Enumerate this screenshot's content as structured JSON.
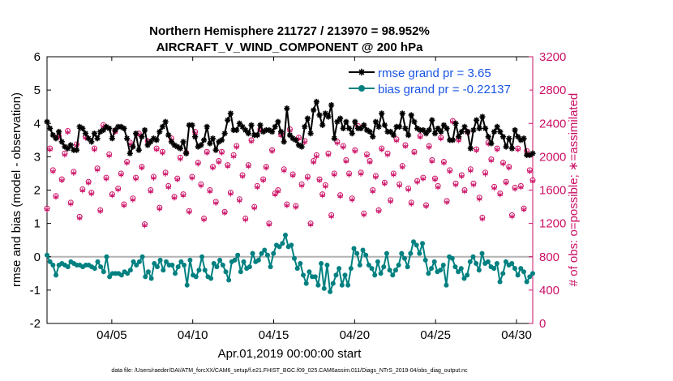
{
  "chart_data": {
    "type": "line",
    "title": "Northern Hemisphere 211727 / 213970 = 98.952%",
    "subtitle": "AIRCRAFT_V_WIND_COMPONENT @ 200 hPa",
    "xlabel": "Apr.01,2019 00:00:00 start",
    "ylabel": "rmse and bias (model - observation)",
    "y2label": "# of obs: o=possible; ∗=assimilated",
    "footnote": "data file: /Users/raeder/DAI/ATM_forcXX/CAM6_setup/f.e21.FHIST_BGC.f09_025.CAM6assim.011/Diags_NTrS_2019-04/obs_diag_output.nc",
    "xlim": [
      1,
      31
    ],
    "ylim": [
      -2,
      6
    ],
    "y2lim": [
      0,
      3200
    ],
    "x_ticks": [
      5,
      10,
      15,
      20,
      25,
      30
    ],
    "x_tick_labels": [
      "04/05",
      "04/10",
      "04/15",
      "04/20",
      "04/25",
      "04/30"
    ],
    "y_ticks": [
      -2,
      -1,
      0,
      1,
      2,
      3,
      4,
      5,
      6
    ],
    "y_tick_labels": [
      "-2",
      "-1",
      "0",
      "1",
      "2",
      "3",
      "4",
      "5",
      "6"
    ],
    "y2_ticks": [
      0,
      400,
      800,
      1200,
      1600,
      2000,
      2400,
      2800,
      3200
    ],
    "y2_tick_labels": [
      "0",
      "400",
      "800",
      "1200",
      "1600",
      "2000",
      "2400",
      "2800",
      "3200"
    ],
    "legend_position": "top-right",
    "grid": false,
    "series": [
      {
        "name": "rmse grand pr = 3.65",
        "color": "#000000",
        "marker": "asterisk",
        "values": [
          4.05,
          3.85,
          3.65,
          3.55,
          3.75,
          3.45,
          3.3,
          3.25,
          3.35,
          3.2,
          3.2,
          3.9,
          3.85,
          3.7,
          3.55,
          3.45,
          3.7,
          3.55,
          3.75,
          3.8,
          3.9,
          3.85,
          3.55,
          3.8,
          3.9,
          3.9,
          3.85,
          3.55,
          3.1,
          3.3,
          3.7,
          3.2,
          3.6,
          3.8,
          3.35,
          3.45,
          3.55,
          3.5,
          3.75,
          3.9,
          4.05,
          3.65,
          3.45,
          3.35,
          3.3,
          3.25,
          3.45,
          3.1,
          3.95,
          3.95,
          3.6,
          3.3,
          3.35,
          3.5,
          3.9,
          3.4,
          3.55,
          3.2,
          3.45,
          3.5,
          3.7,
          4.1,
          4.3,
          3.8,
          3.8,
          4.0,
          3.9,
          3.8,
          3.7,
          3.95,
          3.65,
          3.65,
          3.95,
          3.75,
          3.8,
          3.8,
          3.75,
          3.9,
          4.05,
          3.75,
          3.45,
          4.45,
          3.65,
          3.55,
          3.5,
          3.35,
          3.3,
          3.9,
          4.15,
          3.7,
          4.4,
          4.65,
          4.25,
          3.95,
          4.3,
          4.2,
          4.55,
          3.55,
          4.05,
          4.15,
          3.85,
          4.05,
          3.85,
          3.7,
          4.05,
          3.85,
          3.85,
          3.95,
          3.8,
          3.75,
          3.6,
          4.05,
          3.9,
          4.3,
          3.95,
          3.75,
          3.75,
          3.65,
          3.9,
          3.9,
          4.3,
          3.85,
          3.65,
          4.25,
          4.05,
          3.85,
          3.8,
          3.8,
          3.7,
          3.8,
          4.1,
          3.7,
          3.85,
          3.75,
          3.95,
          3.85,
          3.5,
          3.5,
          4.0,
          3.6,
          3.75,
          3.9,
          3.75,
          3.25,
          3.8,
          4.1,
          3.85,
          4.2,
          3.85,
          3.6,
          3.4,
          3.75,
          3.9,
          3.75,
          3.6,
          3.3,
          3.55,
          3.25,
          3.8,
          3.6,
          3.5,
          3.55,
          3.05,
          3.05,
          3.1
        ]
      },
      {
        "name": "bias grand pr = -0.22137",
        "color": "#008080",
        "marker": "circle",
        "values": [
          0.05,
          -0.15,
          -0.25,
          -0.55,
          -0.25,
          -0.2,
          -0.25,
          -0.3,
          -0.15,
          -0.2,
          -0.25,
          -0.25,
          -0.3,
          -0.25,
          -0.25,
          -0.3,
          -0.35,
          -0.15,
          -0.3,
          -0.45,
          0.0,
          -0.6,
          -0.5,
          -0.5,
          -0.5,
          -0.55,
          -0.45,
          -0.5,
          -0.4,
          -0.15,
          -0.25,
          -0.15,
          0.0,
          -0.6,
          -0.45,
          -0.65,
          -0.2,
          -0.3,
          -0.1,
          -0.4,
          -0.15,
          -0.25,
          -0.25,
          -0.5,
          -0.3,
          -0.15,
          -0.25,
          -0.85,
          -0.1,
          -0.55,
          -0.6,
          -0.4,
          0.0,
          -0.4,
          -0.6,
          -0.65,
          -0.2,
          -0.3,
          -0.1,
          -0.25,
          -0.45,
          -0.7,
          -0.15,
          -0.1,
          0.05,
          -0.45,
          -0.15,
          -0.35,
          -0.3,
          0.1,
          -0.15,
          -0.1,
          0.1,
          0.2,
          0.05,
          -0.3,
          0.1,
          0.35,
          0.3,
          0.4,
          0.65,
          0.3,
          0.35,
          -0.05,
          -0.35,
          -0.2,
          -0.55,
          -0.8,
          -0.45,
          -0.6,
          -0.6,
          -0.85,
          -0.2,
          -0.95,
          -0.25,
          -1.05,
          -0.8,
          -0.55,
          -0.35,
          -0.85,
          -0.55,
          -0.85,
          -0.35,
          0.25,
          0.1,
          -0.25,
          0.2,
          0.05,
          -0.25,
          -0.35,
          -0.55,
          -0.15,
          -0.5,
          -0.3,
          0.1,
          -0.4,
          -0.55,
          -0.4,
          -0.25,
          0.1,
          -0.05,
          -0.3,
          0.1,
          0.45,
          0.35,
          0.1,
          0.4,
          -0.1,
          -0.5,
          -0.35,
          -0.15,
          -0.45,
          -0.4,
          -0.25,
          -0.85,
          0.0,
          -0.05,
          -0.3,
          -0.45,
          -0.35,
          -0.65,
          -0.55,
          -0.15,
          0.0,
          -0.2,
          -0.4,
          0.1,
          -0.2,
          -0.15,
          -0.3,
          -0.35,
          -0.2,
          -0.75,
          -0.5,
          -0.15,
          -0.25,
          -0.2,
          -0.35,
          -0.55,
          -0.35,
          -0.45,
          -0.75,
          -0.6,
          -0.5
        ]
      },
      {
        "name": "obs possible",
        "axis": "right",
        "color": "#cc1166",
        "marker": "open-circle",
        "values": [
          1380,
          2100,
          1840,
          1530,
          2250,
          1730,
          2040,
          2310,
          1450,
          1820,
          2150,
          1280,
          1610,
          2240,
          1700,
          1570,
          2100,
          1860,
          1360,
          2380,
          1750,
          2030,
          1550,
          2310,
          1620,
          1800,
          1430,
          1940,
          2170,
          1500,
          1750,
          2280,
          1880,
          1190,
          2190,
          1600,
          1760,
          2100,
          1390,
          2060,
          1810,
          1650,
          2220,
          1520,
          1740,
          1990,
          1550,
          2050,
          1350,
          1760,
          2300,
          1930,
          1670,
          1260,
          2060,
          1600,
          1880,
          1460,
          1950,
          2060,
          1340,
          1900,
          1570,
          2020,
          2130,
          1490,
          1780,
          1260,
          1900,
          2200,
          1400,
          1650,
          2330,
          1730,
          1880,
          1200,
          2080,
          1560,
          1600,
          2270,
          1850,
          1430,
          2330,
          1790,
          1410,
          2230,
          1670,
          2190,
          1760,
          1200,
          1950,
          2020,
          1730,
          1550,
          1660,
          2040,
          1300,
          1800,
          2180,
          1540,
          2130,
          1960,
          1800,
          1500,
          2080,
          2370,
          1810,
          1320,
          2030,
          1950,
          1600,
          1770,
          1360,
          2100,
          1690,
          2040,
          1480,
          1800,
          2210,
          1670,
          1890,
          2140,
          1620,
          1450,
          2060,
          1710,
          2250,
          1750,
          1420,
          2130,
          1960,
          1740,
          1650,
          2230,
          1940,
          1470,
          1840,
          2430,
          1680,
          2210,
          1780,
          1600,
          2300,
          1850,
          1680,
          2090,
          1510,
          1270,
          1810,
          2170,
          1970,
          1640,
          2100,
          1560,
          1930,
          1700,
          1880,
          1300,
          1630,
          2100,
          1650,
          1380,
          2070,
          1840,
          1720
        ]
      }
    ]
  }
}
